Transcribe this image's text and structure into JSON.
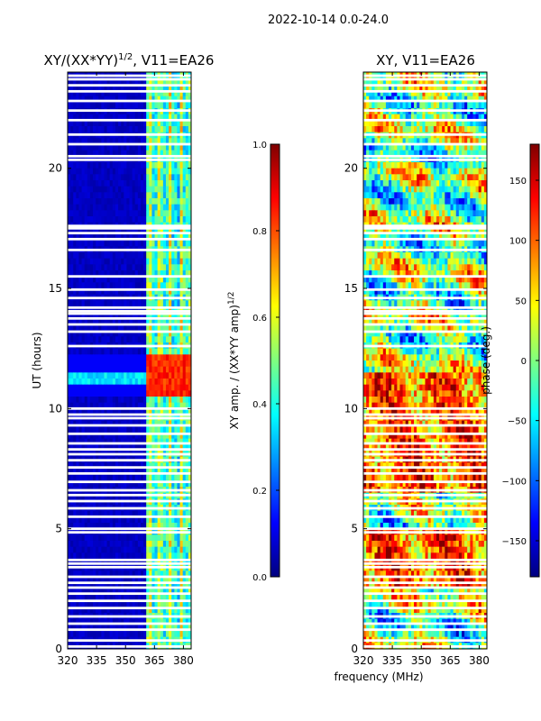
{
  "figure": {
    "suptitle": "2022-10-14 0.0-24.0",
    "shared_xlabel": "frequency (MHz)"
  },
  "chart_data": [
    {
      "type": "heatmap",
      "title": "XY/(XX*YY)¹ᐟ², V11=EA26",
      "title_text": "XY/(XX*YY)",
      "title_exponent": "1/2",
      "title_suffix": ", V11=EA26",
      "xlabel": "",
      "ylabel": "UT (hours)",
      "xlim": [
        320,
        384
      ],
      "ylim": [
        0,
        24
      ],
      "xticks": [
        320,
        335,
        350,
        365,
        380
      ],
      "yticks": [
        0,
        5,
        10,
        15,
        20
      ],
      "quantity": "normalized XY amplitude",
      "colormap": "jet",
      "colorbar": {
        "label_text": "XY amp. / (XX*YY amp)",
        "label_exponent": "1/2",
        "range": [
          0.0,
          1.0
        ],
        "ticks": [
          0.0,
          0.2,
          0.4,
          0.6,
          0.8,
          1.0
        ],
        "tick_labels": [
          "0.0",
          "0.2",
          "0.4",
          "0.6",
          "0.8",
          "1.0"
        ]
      },
      "notes": "Low amplitude (~0.05) across 320-360 MHz; high-amplitude striped bands between ~360 and 383 MHz; elevated region around UT 10.5-12.2 h."
    },
    {
      "type": "heatmap",
      "title": "XY, V11=EA26",
      "xlabel": "frequency (MHz)",
      "ylabel": "",
      "xlim": [
        320,
        384
      ],
      "ylim": [
        0,
        24
      ],
      "xticks": [
        320,
        335,
        350,
        365,
        380
      ],
      "yticks": [
        0,
        5,
        10,
        15,
        20
      ],
      "quantity": "XY phase (deg.)",
      "colormap": "jet",
      "colorbar": {
        "label": "phase (deg.)",
        "range": [
          -180,
          180
        ],
        "ticks": [
          -150,
          -100,
          -50,
          0,
          50,
          100,
          150
        ],
        "tick_labels": [
          "−150",
          "−100",
          "−50",
          "0",
          "50",
          "100",
          "150"
        ]
      },
      "notes": "Noisy phase across full band; predominantly red/orange (~100-150 deg) around UT 2.5-5 h and 6.5-11.5 h; mixed cyan/yellow elsewhere."
    }
  ],
  "flagged_rows_hours": [
    0.1,
    0.35,
    0.8,
    1.05,
    1.35,
    1.7,
    2.0,
    2.3,
    2.55,
    2.75,
    3.0,
    3.4,
    3.55,
    3.7,
    4.85,
    5.0,
    5.5,
    5.85,
    6.15,
    6.4,
    6.6,
    6.95,
    7.3,
    7.55,
    7.85,
    8.1,
    8.3,
    8.55,
    8.95,
    9.3,
    9.6,
    9.75,
    10.0,
    12.6,
    13.2,
    13.5,
    13.75,
    13.95,
    14.05,
    14.2,
    14.6,
    14.95,
    15.5,
    16.6,
    17.05,
    17.3,
    17.5,
    17.6,
    20.35,
    20.5,
    21.0,
    21.4,
    22.0,
    22.4,
    22.8,
    23.2,
    23.45,
    23.7,
    23.85
  ]
}
